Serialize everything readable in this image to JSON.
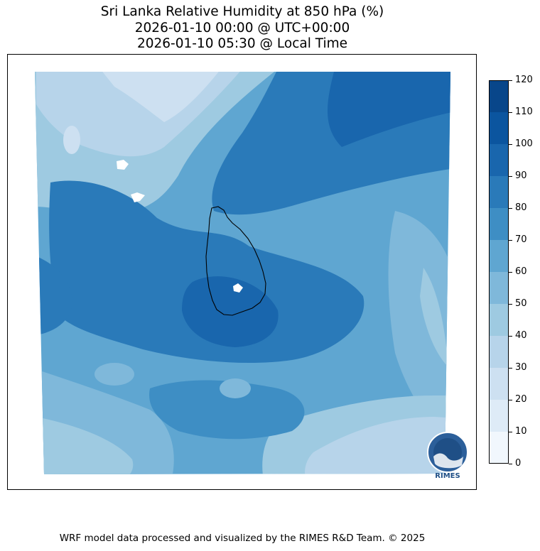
{
  "title": {
    "line1": "Sri Lanka Relative Humidity at 850 hPa (%)",
    "line2": "2026-01-10 00:00 @ UTC+00:00",
    "line3": "2026-01-10 05:30 @ Local Time"
  },
  "map": {
    "variable": "Relative Humidity",
    "level": "850 hPa",
    "units": "%",
    "coastline_region": "Sri Lanka"
  },
  "logo": {
    "text": "RIMES"
  },
  "colorbar": {
    "levels": [
      0,
      10,
      20,
      30,
      40,
      50,
      60,
      70,
      80,
      90,
      100,
      110,
      120
    ],
    "tick_labels": [
      "0",
      "10",
      "20",
      "30",
      "40",
      "50",
      "60",
      "70",
      "80",
      "90",
      "100",
      "110",
      "120"
    ],
    "colors": [
      "#f1f7fd",
      "#deebf7",
      "#cde0f1",
      "#b7d4ea",
      "#9ecae1",
      "#7fb8da",
      "#5fa6d1",
      "#3e8ec4",
      "#2a7ab9",
      "#1966ad",
      "#0b559f",
      "#08468a"
    ]
  },
  "credit": "WRF model data processed and visualized by the RIMES R&D Team. © 2025"
}
